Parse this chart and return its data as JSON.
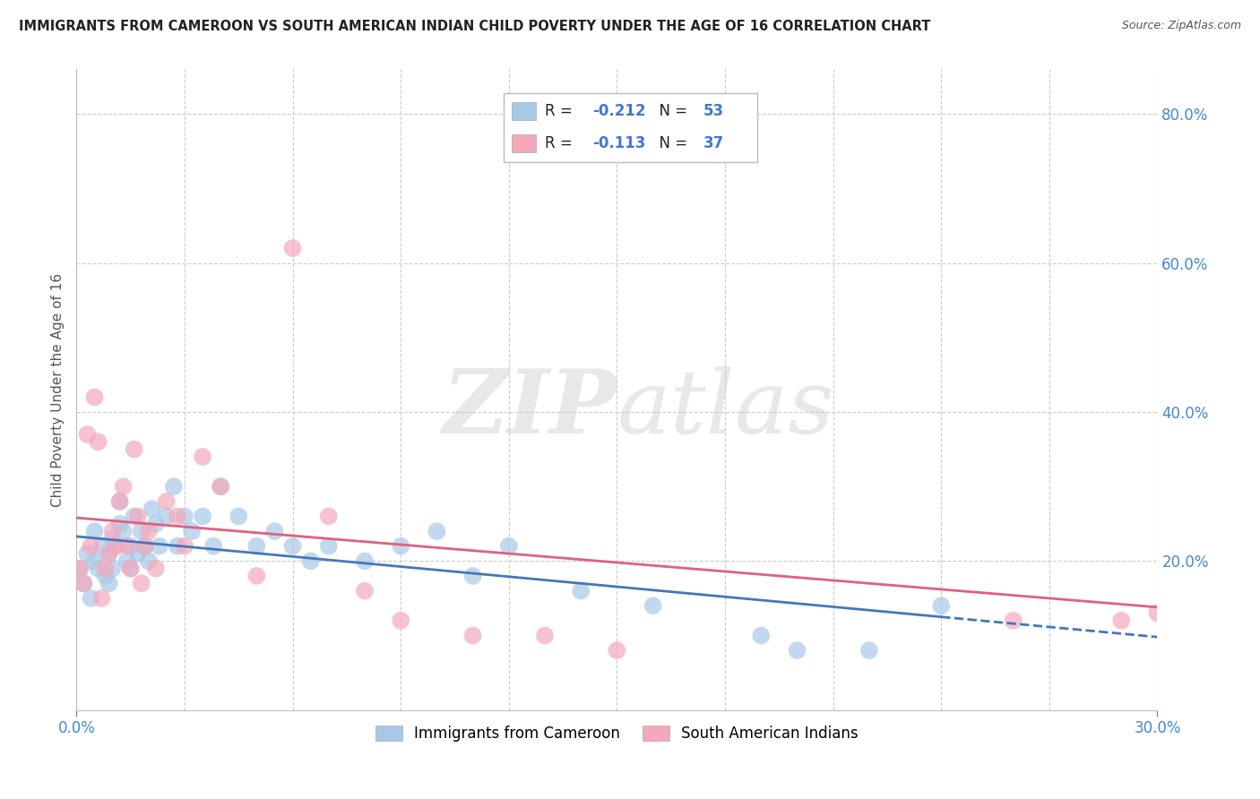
{
  "title": "IMMIGRANTS FROM CAMEROON VS SOUTH AMERICAN INDIAN CHILD POVERTY UNDER THE AGE OF 16 CORRELATION CHART",
  "source": "Source: ZipAtlas.com",
  "ylabel": "Child Poverty Under the Age of 16",
  "xmin": 0.0,
  "xmax": 0.3,
  "ymin": 0.0,
  "ymax": 0.86,
  "yticks": [
    0.0,
    0.2,
    0.4,
    0.6,
    0.8
  ],
  "ytick_labels_right": [
    "",
    "20.0%",
    "40.0%",
    "60.0%",
    "80.0%"
  ],
  "series1_label": "Immigrants from Cameroon",
  "series2_label": "South American Indians",
  "R1": -0.212,
  "N1": 53,
  "R2": -0.113,
  "N2": 37,
  "color1": "#a8c8e8",
  "color2": "#f4a8bc",
  "line_color1": "#4477bb",
  "line_color2": "#e06080",
  "watermark": "ZIPatlas",
  "background_color": "#ffffff",
  "grid_color": "#cccccc",
  "series1_x": [
    0.001,
    0.002,
    0.003,
    0.004,
    0.005,
    0.005,
    0.006,
    0.007,
    0.008,
    0.009,
    0.009,
    0.01,
    0.01,
    0.011,
    0.012,
    0.012,
    0.013,
    0.014,
    0.015,
    0.015,
    0.016,
    0.017,
    0.018,
    0.019,
    0.02,
    0.021,
    0.022,
    0.023,
    0.025,
    0.027,
    0.028,
    0.03,
    0.032,
    0.035,
    0.038,
    0.04,
    0.045,
    0.05,
    0.055,
    0.06,
    0.065,
    0.07,
    0.08,
    0.09,
    0.1,
    0.11,
    0.12,
    0.14,
    0.16,
    0.19,
    0.2,
    0.22,
    0.24
  ],
  "series1_y": [
    0.19,
    0.17,
    0.21,
    0.15,
    0.2,
    0.24,
    0.19,
    0.22,
    0.18,
    0.21,
    0.17,
    0.23,
    0.19,
    0.22,
    0.25,
    0.28,
    0.24,
    0.2,
    0.22,
    0.19,
    0.26,
    0.21,
    0.24,
    0.22,
    0.2,
    0.27,
    0.25,
    0.22,
    0.26,
    0.3,
    0.22,
    0.26,
    0.24,
    0.26,
    0.22,
    0.3,
    0.26,
    0.22,
    0.24,
    0.22,
    0.2,
    0.22,
    0.2,
    0.22,
    0.24,
    0.18,
    0.22,
    0.16,
    0.14,
    0.1,
    0.08,
    0.08,
    0.14
  ],
  "series2_x": [
    0.001,
    0.002,
    0.003,
    0.004,
    0.005,
    0.006,
    0.007,
    0.008,
    0.009,
    0.01,
    0.011,
    0.012,
    0.013,
    0.014,
    0.015,
    0.016,
    0.017,
    0.018,
    0.019,
    0.02,
    0.022,
    0.025,
    0.028,
    0.03,
    0.035,
    0.04,
    0.05,
    0.06,
    0.07,
    0.08,
    0.09,
    0.11,
    0.13,
    0.15,
    0.26,
    0.29,
    0.3
  ],
  "series2_y": [
    0.19,
    0.17,
    0.37,
    0.22,
    0.42,
    0.36,
    0.15,
    0.19,
    0.21,
    0.24,
    0.22,
    0.28,
    0.3,
    0.22,
    0.19,
    0.35,
    0.26,
    0.17,
    0.22,
    0.24,
    0.19,
    0.28,
    0.26,
    0.22,
    0.34,
    0.3,
    0.18,
    0.62,
    0.26,
    0.16,
    0.12,
    0.1,
    0.1,
    0.08,
    0.12,
    0.12,
    0.13
  ],
  "trendline1_x0": 0.0,
  "trendline1_y0": 0.233,
  "trendline1_x1": 0.24,
  "trendline1_y1": 0.125,
  "trendline1_xdash0": 0.24,
  "trendline1_xdash1": 0.3,
  "trendline2_x0": 0.0,
  "trendline2_y0": 0.258,
  "trendline2_x1": 0.3,
  "trendline2_y1": 0.138
}
